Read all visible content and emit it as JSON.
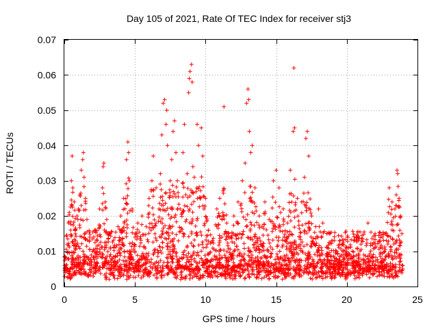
{
  "chart_data": {
    "type": "scatter",
    "title": "Day 105 of 2021, Rate Of TEC Index for receiver stj3",
    "xlabel": "GPS time / hours",
    "ylabel": "ROTI / TECUs",
    "xlim": [
      0,
      25
    ],
    "ylim": [
      0,
      0.07
    ],
    "xticks": [
      0,
      5,
      10,
      15,
      20,
      25
    ],
    "xtick_labels": [
      "0",
      "5",
      "10",
      "15",
      "20",
      "25"
    ],
    "yticks": [
      0,
      0.01,
      0.02,
      0.03,
      0.04,
      0.05,
      0.06,
      0.07
    ],
    "ytick_labels": [
      "0",
      "0.01",
      "0.02",
      "0.03",
      "0.04",
      "0.05",
      "0.06",
      "0.07"
    ],
    "grid": true,
    "marker": "+",
    "series": [
      {
        "name": "ROTI",
        "color": "#ff0000",
        "points": [
          [
            0.1,
            0.006
          ],
          [
            0.2,
            0.012
          ],
          [
            0.3,
            0.018
          ],
          [
            0.35,
            0.021
          ],
          [
            0.45,
            0.016
          ],
          [
            0.5,
            0.03
          ],
          [
            0.55,
            0.037
          ],
          [
            0.6,
            0.028
          ],
          [
            0.7,
            0.024
          ],
          [
            0.8,
            0.013
          ],
          [
            0.9,
            0.02
          ],
          [
            1.0,
            0.022
          ],
          [
            1.1,
            0.026
          ],
          [
            1.2,
            0.033
          ],
          [
            1.3,
            0.036
          ],
          [
            1.35,
            0.038
          ],
          [
            1.4,
            0.031
          ],
          [
            1.5,
            0.025
          ],
          [
            1.6,
            0.019
          ],
          [
            1.8,
            0.014
          ],
          [
            2.0,
            0.01
          ],
          [
            2.2,
            0.016
          ],
          [
            2.5,
            0.022
          ],
          [
            2.7,
            0.028
          ],
          [
            2.75,
            0.034
          ],
          [
            2.8,
            0.035
          ],
          [
            2.9,
            0.024
          ],
          [
            3.0,
            0.019
          ],
          [
            3.2,
            0.015
          ],
          [
            3.5,
            0.011
          ],
          [
            3.8,
            0.017
          ],
          [
            4.0,
            0.02
          ],
          [
            4.2,
            0.025
          ],
          [
            4.4,
            0.036
          ],
          [
            4.5,
            0.041
          ],
          [
            4.55,
            0.038
          ],
          [
            4.6,
            0.03
          ],
          [
            4.8,
            0.022
          ],
          [
            5.0,
            0.014
          ],
          [
            5.2,
            0.018
          ],
          [
            5.5,
            0.02
          ],
          [
            5.8,
            0.017
          ],
          [
            6.0,
            0.025
          ],
          [
            6.2,
            0.03
          ],
          [
            6.3,
            0.037
          ],
          [
            6.5,
            0.028
          ],
          [
            6.7,
            0.022
          ],
          [
            6.8,
            0.032
          ],
          [
            6.9,
            0.043
          ],
          [
            7.0,
            0.052
          ],
          [
            7.1,
            0.053
          ],
          [
            7.2,
            0.046
          ],
          [
            7.25,
            0.05
          ],
          [
            7.3,
            0.04
          ],
          [
            7.5,
            0.03
          ],
          [
            7.6,
            0.036
          ],
          [
            7.7,
            0.044
          ],
          [
            7.8,
            0.047
          ],
          [
            7.9,
            0.038
          ],
          [
            8.0,
            0.03
          ],
          [
            8.2,
            0.022
          ],
          [
            8.4,
            0.038
          ],
          [
            8.5,
            0.046
          ],
          [
            8.6,
            0.026
          ],
          [
            8.7,
            0.032
          ],
          [
            8.8,
            0.055
          ],
          [
            8.85,
            0.059
          ],
          [
            8.9,
            0.061
          ],
          [
            9.0,
            0.063
          ],
          [
            9.05,
            0.058
          ],
          [
            9.1,
            0.034
          ],
          [
            9.2,
            0.031
          ],
          [
            9.4,
            0.046
          ],
          [
            9.5,
            0.04
          ],
          [
            9.7,
            0.045
          ],
          [
            9.8,
            0.037
          ],
          [
            10.0,
            0.025
          ],
          [
            10.2,
            0.016
          ],
          [
            10.5,
            0.013
          ],
          [
            10.8,
            0.022
          ],
          [
            11.0,
            0.025
          ],
          [
            11.3,
            0.051
          ],
          [
            11.5,
            0.018
          ],
          [
            11.8,
            0.014
          ],
          [
            12.0,
            0.02
          ],
          [
            12.3,
            0.024
          ],
          [
            12.6,
            0.03
          ],
          [
            12.8,
            0.035
          ],
          [
            12.9,
            0.052
          ],
          [
            13.0,
            0.056
          ],
          [
            13.05,
            0.053
          ],
          [
            13.1,
            0.044
          ],
          [
            13.2,
            0.038
          ],
          [
            13.3,
            0.04
          ],
          [
            13.5,
            0.028
          ],
          [
            13.8,
            0.02
          ],
          [
            14.0,
            0.017
          ],
          [
            14.2,
            0.024
          ],
          [
            14.5,
            0.019
          ],
          [
            14.8,
            0.03
          ],
          [
            15.0,
            0.033
          ],
          [
            15.2,
            0.028
          ],
          [
            15.5,
            0.022
          ],
          [
            15.8,
            0.018
          ],
          [
            16.0,
            0.033
          ],
          [
            16.2,
            0.044
          ],
          [
            16.25,
            0.062
          ],
          [
            16.3,
            0.045
          ],
          [
            16.5,
            0.025
          ],
          [
            16.8,
            0.024
          ],
          [
            17.0,
            0.031
          ],
          [
            17.1,
            0.042
          ],
          [
            17.2,
            0.044
          ],
          [
            17.3,
            0.037
          ],
          [
            17.5,
            0.02
          ],
          [
            17.8,
            0.017
          ],
          [
            18.0,
            0.022
          ],
          [
            18.3,
            0.018
          ],
          [
            18.6,
            0.015
          ],
          [
            19.0,
            0.013
          ],
          [
            19.5,
            0.012
          ],
          [
            20.0,
            0.011
          ],
          [
            20.5,
            0.013
          ],
          [
            21.0,
            0.012
          ],
          [
            21.5,
            0.018
          ],
          [
            22.0,
            0.015
          ],
          [
            22.5,
            0.014
          ],
          [
            22.8,
            0.013
          ],
          [
            23.0,
            0.028
          ],
          [
            23.2,
            0.024
          ],
          [
            23.4,
            0.022
          ],
          [
            23.5,
            0.026
          ],
          [
            23.55,
            0.033
          ],
          [
            23.6,
            0.032
          ],
          [
            23.7,
            0.025
          ],
          [
            23.8,
            0.02
          ],
          [
            23.9,
            0.015
          ]
        ]
      }
    ],
    "dense_band": {
      "x_range": [
        0,
        24
      ],
      "y_floor_min": 0.002,
      "y_floor_max": 0.006,
      "y_ceiling_typical": 0.016,
      "note": "dense cloud of ROTI samples across all hours"
    }
  }
}
